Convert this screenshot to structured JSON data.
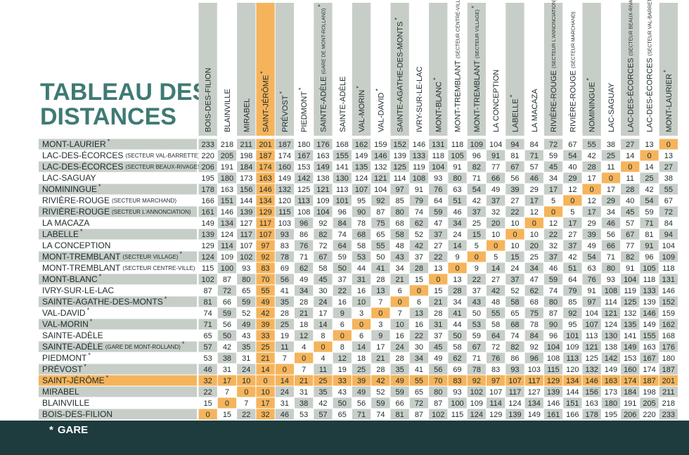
{
  "title": [
    "TABLEAU DES",
    "DISTANCES"
  ],
  "legend": {
    "mark": "*",
    "text": "GARE"
  },
  "highlight": {
    "column": 3,
    "row": 21,
    "color": "#f5b45c"
  },
  "columns": [
    {
      "name": "BOIS-DES-FILION"
    },
    {
      "name": "BLAINVILLE"
    },
    {
      "name": "MIRABEL"
    },
    {
      "name": "SAINT-JÉRÔME",
      "mark": "*"
    },
    {
      "name": "PRÉVOST",
      "mark": "*"
    },
    {
      "name": "PIEDMONT",
      "mark": "*"
    },
    {
      "name": "SAINTE-ADÈLE",
      "sub": "(GARE DE MONT-ROLLAND)",
      "mark": "*"
    },
    {
      "name": "SAINTE-ADÈLE"
    },
    {
      "name": "VAL-MORIN",
      "mark": "*"
    },
    {
      "name": "VAL-DAVID",
      "mark": "*"
    },
    {
      "name": "SAINTE-AGATHE-DES-MONTS",
      "mark": "*"
    },
    {
      "name": "IVRY-SUR-LE-LAC"
    },
    {
      "name": "MONT-BLANC",
      "mark": "*"
    },
    {
      "name": "MONT-TREMBLANT",
      "sub": "(SECTEUR CENTRE-VILLE)"
    },
    {
      "name": "MONT-TREMBLANT",
      "sub": "(SECTEUR VILLAGE)",
      "mark": "*"
    },
    {
      "name": "LA CONCEPTION"
    },
    {
      "name": "LABELLE",
      "mark": "*"
    },
    {
      "name": "LA MACAZA"
    },
    {
      "name": "RIVIÈRE-ROUGE",
      "sub": "(SECTEUR L'ANNONCIATION)",
      "mark": "*"
    },
    {
      "name": "RIVIÈRE-ROUGE",
      "sub": "(SECTEUR MARCHAND)"
    },
    {
      "name": "NOMININGUE",
      "mark": "*"
    },
    {
      "name": "LAC-SAGUAY"
    },
    {
      "name": "LAC-DES-ÉCORCES",
      "sub": "(SECTEUR BEAUX-RIVAGES)"
    },
    {
      "name": "LAC-DES-ÉCORCES",
      "sub": "(SECTEUR VAL-BARRETTE)"
    },
    {
      "name": "MONT-LAURIER",
      "mark": "*"
    }
  ],
  "rows": [
    {
      "name": "MONT-LAURIER",
      "mark": "*",
      "values": [
        233,
        218,
        211,
        201,
        187,
        180,
        176,
        168,
        162,
        159,
        152,
        146,
        131,
        118,
        109,
        104,
        94,
        84,
        72,
        67,
        55,
        38,
        27,
        13,
        0
      ]
    },
    {
      "name": "LAC-DES-ÉCORCES",
      "sub": "(SECTEUR VAL-BARRETTE)",
      "values": [
        220,
        205,
        198,
        187,
        174,
        167,
        163,
        155,
        149,
        146,
        139,
        133,
        118,
        105,
        96,
        91,
        81,
        71,
        59,
        54,
        42,
        25,
        14,
        0,
        13
      ]
    },
    {
      "name": "LAC-DES-ÉCORCES",
      "sub": "(SECTEUR BEAUX-RIVAGES)",
      "values": [
        206,
        191,
        184,
        174,
        160,
        153,
        149,
        141,
        135,
        132,
        125,
        119,
        104,
        91,
        82,
        77,
        67,
        57,
        45,
        40,
        28,
        11,
        0,
        14,
        27
      ]
    },
    {
      "name": "LAC-SAGUAY",
      "values": [
        195,
        180,
        173,
        163,
        149,
        142,
        138,
        130,
        124,
        121,
        114,
        108,
        93,
        80,
        71,
        66,
        56,
        46,
        34,
        29,
        17,
        0,
        11,
        25,
        38
      ]
    },
    {
      "name": "NOMININGUE",
      "mark": "*",
      "values": [
        178,
        163,
        156,
        146,
        132,
        125,
        121,
        113,
        107,
        104,
        97,
        91,
        76,
        63,
        54,
        49,
        39,
        29,
        17,
        12,
        0,
        17,
        28,
        42,
        55
      ]
    },
    {
      "name": "RIVIÈRE-ROUGE",
      "sub": "(SECTEUR MARCHAND)",
      "values": [
        166,
        151,
        144,
        134,
        120,
        113,
        109,
        101,
        95,
        92,
        85,
        79,
        64,
        51,
        42,
        37,
        27,
        17,
        5,
        0,
        12,
        29,
        40,
        54,
        67
      ]
    },
    {
      "name": "RIVIÈRE-ROUGE",
      "sub": "(SECTEUR L'ANNONCIATION)",
      "values": [
        161,
        146,
        139,
        129,
        115,
        108,
        104,
        96,
        90,
        87,
        80,
        74,
        59,
        46,
        37,
        32,
        22,
        12,
        0,
        5,
        17,
        34,
        45,
        59,
        72
      ]
    },
    {
      "name": "LA MACAZA",
      "values": [
        149,
        134,
        127,
        117,
        103,
        96,
        92,
        84,
        78,
        75,
        68,
        62,
        47,
        34,
        25,
        20,
        10,
        0,
        12,
        17,
        29,
        46,
        57,
        71,
        84
      ]
    },
    {
      "name": "LABELLE",
      "mark": "*",
      "values": [
        139,
        124,
        117,
        107,
        93,
        86,
        82,
        74,
        68,
        65,
        58,
        52,
        37,
        24,
        15,
        10,
        0,
        10,
        22,
        27,
        39,
        56,
        67,
        81,
        94
      ]
    },
    {
      "name": "LA CONCEPTION",
      "values": [
        129,
        114,
        107,
        97,
        83,
        76,
        72,
        64,
        58,
        55,
        48,
        42,
        27,
        14,
        5,
        0,
        10,
        20,
        32,
        37,
        49,
        66,
        77,
        91,
        104
      ]
    },
    {
      "name": "MONT-TREMBLANT",
      "sub": "(SECTEUR VILLAGE)",
      "mark": "*",
      "values": [
        124,
        109,
        102,
        92,
        78,
        71,
        67,
        59,
        53,
        50,
        43,
        37,
        22,
        9,
        0,
        5,
        15,
        25,
        37,
        42,
        54,
        71,
        82,
        96,
        109
      ]
    },
    {
      "name": "MONT-TREMBLANT",
      "sub": "(SECTEUR CENTRE-VILLE)",
      "values": [
        115,
        100,
        93,
        83,
        69,
        62,
        58,
        50,
        44,
        41,
        34,
        28,
        13,
        0,
        9,
        14,
        24,
        34,
        46,
        51,
        63,
        80,
        91,
        105,
        118
      ]
    },
    {
      "name": "MONT-BLANC",
      "mark": "*",
      "values": [
        102,
        87,
        80,
        70,
        56,
        49,
        45,
        37,
        31,
        28,
        21,
        15,
        0,
        13,
        22,
        27,
        37,
        47,
        59,
        64,
        76,
        93,
        104,
        118,
        131
      ]
    },
    {
      "name": "IVRY-SUR-LE-LAC",
      "values": [
        87,
        72,
        65,
        55,
        41,
        34,
        30,
        22,
        16,
        13,
        6,
        0,
        15,
        28,
        37,
        42,
        52,
        62,
        74,
        79,
        91,
        108,
        119,
        133,
        146
      ]
    },
    {
      "name": "SAINTE-AGATHE-DES-MONTS",
      "mark": "*",
      "values": [
        81,
        66,
        59,
        49,
        35,
        28,
        24,
        16,
        10,
        7,
        0,
        6,
        21,
        34,
        43,
        48,
        58,
        68,
        80,
        85,
        97,
        114,
        125,
        139,
        152
      ]
    },
    {
      "name": "VAL-DAVID",
      "mark": "*",
      "values": [
        74,
        59,
        52,
        42,
        28,
        21,
        17,
        9,
        3,
        0,
        7,
        13,
        28,
        41,
        50,
        55,
        65,
        75,
        87,
        92,
        104,
        121,
        132,
        146,
        159
      ]
    },
    {
      "name": "VAL-MORIN",
      "mark": "*",
      "values": [
        71,
        56,
        49,
        39,
        25,
        18,
        14,
        6,
        0,
        3,
        10,
        16,
        31,
        44,
        53,
        58,
        68,
        78,
        90,
        95,
        107,
        124,
        135,
        149,
        162
      ]
    },
    {
      "name": "SAINTE-ADÈLE",
      "values": [
        65,
        50,
        43,
        33,
        19,
        12,
        8,
        0,
        6,
        9,
        16,
        22,
        37,
        50,
        59,
        64,
        74,
        84,
        96,
        101,
        113,
        130,
        141,
        155,
        168
      ]
    },
    {
      "name": "SAINTE-ADÈLE",
      "sub": "(GARE DE MONT-ROLLAND)",
      "mark": "*",
      "values": [
        57,
        42,
        35,
        25,
        11,
        4,
        0,
        8,
        14,
        17,
        24,
        30,
        45,
        58,
        67,
        72,
        82,
        92,
        104,
        109,
        121,
        138,
        149,
        163,
        176
      ]
    },
    {
      "name": "PIEDMONT",
      "mark": "*",
      "values": [
        53,
        38,
        31,
        21,
        7,
        0,
        4,
        12,
        18,
        21,
        28,
        34,
        49,
        62,
        71,
        76,
        86,
        96,
        108,
        113,
        125,
        142,
        153,
        167,
        180
      ]
    },
    {
      "name": "PRÉVOST",
      "mark": "*",
      "values": [
        46,
        31,
        24,
        14,
        0,
        7,
        11,
        19,
        25,
        28,
        35,
        41,
        56,
        69,
        78,
        83,
        93,
        103,
        115,
        120,
        132,
        149,
        160,
        174,
        187
      ]
    },
    {
      "name": "SAINT-JÉRÔME",
      "mark": "*",
      "values": [
        32,
        17,
        10,
        0,
        14,
        21,
        25,
        33,
        39,
        42,
        49,
        55,
        70,
        83,
        92,
        97,
        107,
        117,
        129,
        134,
        146,
        163,
        174,
        187,
        201
      ]
    },
    {
      "name": "MIRABEL",
      "values": [
        22,
        7,
        0,
        10,
        24,
        31,
        35,
        43,
        49,
        52,
        59,
        65,
        80,
        93,
        102,
        107,
        117,
        127,
        139,
        144,
        156,
        173,
        184,
        198,
        211
      ]
    },
    {
      "name": "BLAINVILLE",
      "values": [
        15,
        0,
        7,
        17,
        31,
        38,
        42,
        50,
        56,
        59,
        66,
        72,
        87,
        100,
        109,
        114,
        124,
        134,
        146,
        151,
        163,
        180,
        191,
        205,
        218
      ]
    },
    {
      "name": "BOIS-DES-FILION",
      "values": [
        0,
        15,
        22,
        32,
        46,
        53,
        57,
        65,
        71,
        74,
        81,
        87,
        102,
        115,
        124,
        129,
        139,
        149,
        161,
        166,
        178,
        195,
        206,
        220,
        233
      ]
    }
  ]
}
